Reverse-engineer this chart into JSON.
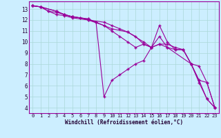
{
  "xlabel": "Windchill (Refroidissement éolien,°C)",
  "background_color": "#cceeff",
  "line_color": "#990099",
  "grid_color": "#aad8d8",
  "axis_label_color": "#220033",
  "ylim": [
    3.5,
    13.7
  ],
  "xlim": [
    -0.5,
    23.5
  ],
  "yticks": [
    4,
    5,
    6,
    7,
    8,
    9,
    10,
    11,
    12,
    13
  ],
  "xticks": [
    0,
    1,
    2,
    3,
    4,
    5,
    6,
    7,
    8,
    9,
    10,
    11,
    12,
    13,
    14,
    15,
    16,
    17,
    18,
    19,
    20,
    21,
    22,
    23
  ],
  "curves": [
    {
      "x": [
        0,
        1,
        3,
        4,
        5,
        6,
        7,
        8,
        9,
        10,
        12,
        14,
        15,
        16,
        17,
        18,
        19,
        20,
        21,
        22,
        23
      ],
      "y": [
        13.3,
        13.2,
        12.8,
        12.5,
        12.3,
        12.2,
        12.1,
        11.8,
        11.5,
        11.2,
        10.9,
        10.0,
        9.5,
        9.8,
        9.8,
        9.5,
        9.3,
        8.0,
        7.8,
        6.3,
        4.0
      ]
    },
    {
      "x": [
        0,
        1,
        3,
        4,
        5,
        7,
        8,
        9,
        10,
        11,
        12,
        13,
        14,
        15,
        16,
        17,
        20,
        21,
        22,
        23
      ],
      "y": [
        13.3,
        13.2,
        12.8,
        12.5,
        12.3,
        12.1,
        11.8,
        5.0,
        6.5,
        7.0,
        7.5,
        8.0,
        8.3,
        9.5,
        9.8,
        9.5,
        8.0,
        6.3,
        4.8,
        4.0
      ]
    },
    {
      "x": [
        0,
        1,
        2,
        3,
        4,
        5,
        6,
        7,
        9,
        10,
        11,
        12,
        13,
        14,
        15,
        16,
        17,
        18,
        19,
        20,
        21,
        22,
        23
      ],
      "y": [
        13.3,
        13.2,
        12.8,
        12.7,
        12.5,
        12.3,
        12.2,
        12.0,
        11.8,
        11.5,
        11.2,
        10.9,
        10.5,
        9.8,
        9.5,
        10.5,
        9.5,
        9.3,
        9.3,
        8.0,
        6.5,
        4.8,
        4.0
      ]
    },
    {
      "x": [
        0,
        1,
        2,
        3,
        4,
        5,
        7,
        9,
        10,
        11,
        12,
        13,
        14,
        15,
        16,
        17,
        18,
        19,
        20,
        21,
        22,
        23
      ],
      "y": [
        13.3,
        13.2,
        12.8,
        12.5,
        12.4,
        12.2,
        12.0,
        11.5,
        11.0,
        10.5,
        10.0,
        9.5,
        9.8,
        9.5,
        11.5,
        10.0,
        9.3,
        9.3,
        8.0,
        6.5,
        6.3,
        4.0
      ]
    }
  ]
}
